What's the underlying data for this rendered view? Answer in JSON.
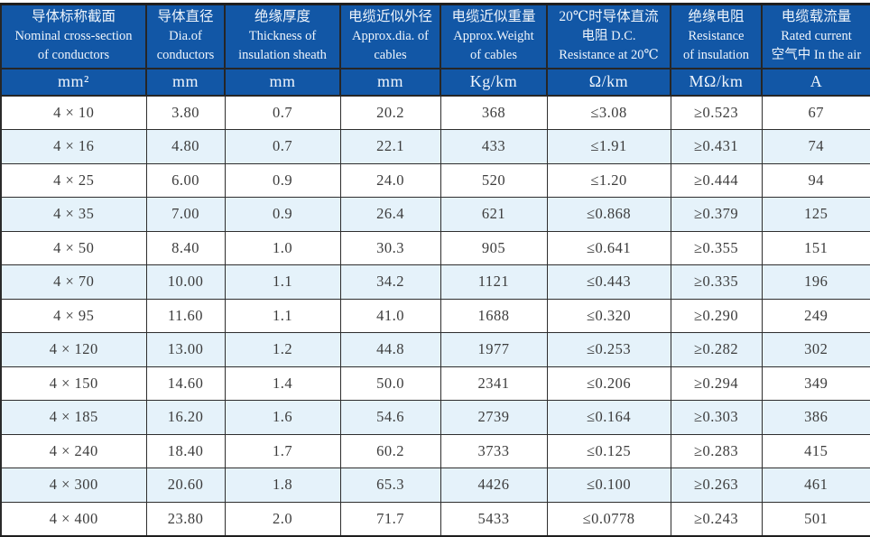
{
  "colors": {
    "header_bg": "#1257a6",
    "header_text": "#eef4fb",
    "row_alt_bg": "#e5f2fa",
    "row_bg": "#ffffff",
    "border": "#2e2e2e",
    "data_text": "#3c3c3c"
  },
  "table": {
    "columns": [
      {
        "lines": [
          "导体标称截面",
          "Nominal cross-section",
          "of conductors"
        ],
        "unit": "mm²"
      },
      {
        "lines": [
          "导体直径",
          "Dia.of",
          "conductors"
        ],
        "unit": "mm"
      },
      {
        "lines": [
          "绝缘厚度",
          "Thickness of",
          "insulation sheath"
        ],
        "unit": "mm"
      },
      {
        "lines": [
          "电缆近似外径",
          "Approx.dia. of",
          "cables"
        ],
        "unit": "mm"
      },
      {
        "lines": [
          "电缆近似重量",
          "Approx.Weight",
          "of cables"
        ],
        "unit": "Kg/km"
      },
      {
        "lines": [
          "20℃时导体直流",
          "电阻 D.C.",
          "Resistance at 20℃"
        ],
        "unit": "Ω/km"
      },
      {
        "lines": [
          "绝缘电阻",
          "Resistance",
          "of insulation"
        ],
        "unit": "MΩ/km"
      },
      {
        "lines": [
          "电缆载流量",
          "Rated current",
          "空气中 In the air"
        ],
        "unit": "A"
      }
    ],
    "rows": [
      [
        "4 × 10",
        "3.80",
        "0.7",
        "20.2",
        "368",
        "≤3.08",
        "≥0.523",
        "67"
      ],
      [
        "4 × 16",
        "4.80",
        "0.7",
        "22.1",
        "433",
        "≤1.91",
        "≥0.431",
        "74"
      ],
      [
        "4 × 25",
        "6.00",
        "0.9",
        "24.0",
        "520",
        "≤1.20",
        "≥0.444",
        "94"
      ],
      [
        "4 × 35",
        "7.00",
        "0.9",
        "26.4",
        "621",
        "≤0.868",
        "≥0.379",
        "125"
      ],
      [
        "4 × 50",
        "8.40",
        "1.0",
        "30.3",
        "905",
        "≤0.641",
        "≥0.355",
        "151"
      ],
      [
        "4 × 70",
        "10.00",
        "1.1",
        "34.2",
        "1121",
        "≤0.443",
        "≥0.335",
        "196"
      ],
      [
        "4 × 95",
        "11.60",
        "1.1",
        "41.0",
        "1688",
        "≤0.320",
        "≥0.290",
        "249"
      ],
      [
        "4 × 120",
        "13.00",
        "1.2",
        "44.8",
        "1977",
        "≤0.253",
        "≥0.282",
        "302"
      ],
      [
        "4 × 150",
        "14.60",
        "1.4",
        "50.0",
        "2341",
        "≤0.206",
        "≥0.294",
        "349"
      ],
      [
        "4 × 185",
        "16.20",
        "1.6",
        "54.6",
        "2739",
        "≤0.164",
        "≥0.303",
        "386"
      ],
      [
        "4 × 240",
        "18.40",
        "1.7",
        "60.2",
        "3733",
        "≤0.125",
        "≥0.283",
        "415"
      ],
      [
        "4 × 300",
        "20.60",
        "1.8",
        "65.3",
        "4426",
        "≤0.100",
        "≥0.263",
        "461"
      ],
      [
        "4 × 400",
        "23.80",
        "2.0",
        "71.7",
        "5433",
        "≤0.0778",
        "≥0.243",
        "501"
      ]
    ]
  }
}
